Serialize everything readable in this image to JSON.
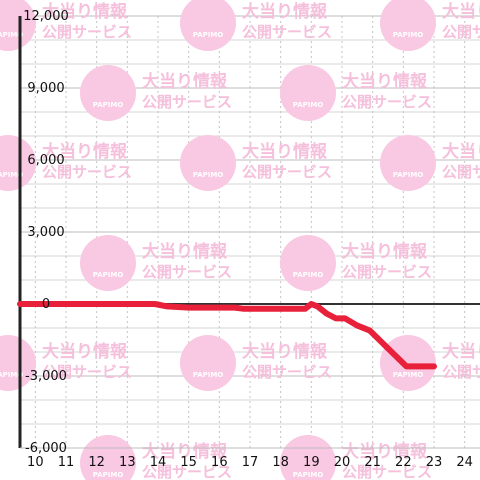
{
  "watermark": {
    "line1": "大当り情報",
    "line2": "公開サービス",
    "logo": "PAPIMO",
    "color": "#f9c8e2"
  },
  "chart_data": {
    "type": "line",
    "title": "",
    "xlabel": "",
    "ylabel": "",
    "xlim": [
      9.5,
      24.5
    ],
    "ylim": [
      -6000,
      12000
    ],
    "xticks": [
      10,
      11,
      12,
      13,
      14,
      15,
      16,
      17,
      18,
      19,
      20,
      21,
      22,
      23,
      24
    ],
    "xtick_labels": [
      "10",
      "11",
      "12",
      "13",
      "14",
      "15",
      "16",
      "17",
      "18",
      "19",
      "20",
      "21",
      "22",
      "23",
      "24"
    ],
    "yticks": [
      -6000,
      -3000,
      0,
      3000,
      6000,
      9000,
      12000
    ],
    "ytick_labels": [
      "-6,000",
      "-3,000",
      "0",
      "3,000",
      "6,000",
      "9,000",
      "12,000"
    ],
    "grid": true,
    "series": [
      {
        "color": "#e8203a",
        "x": [
          9.5,
          13.9,
          14.3,
          15.0,
          16.5,
          16.8,
          18.2,
          18.8,
          19.0,
          19.2,
          19.5,
          19.8,
          20.1,
          20.5,
          20.9,
          21.3,
          21.7,
          22.1,
          22.6,
          23.0
        ],
        "y": [
          0,
          0,
          -100,
          -150,
          -150,
          -200,
          -200,
          -200,
          0,
          -100,
          -400,
          -600,
          -600,
          -900,
          -1100,
          -1600,
          -2100,
          -2600,
          -2600,
          -2600
        ]
      }
    ]
  }
}
